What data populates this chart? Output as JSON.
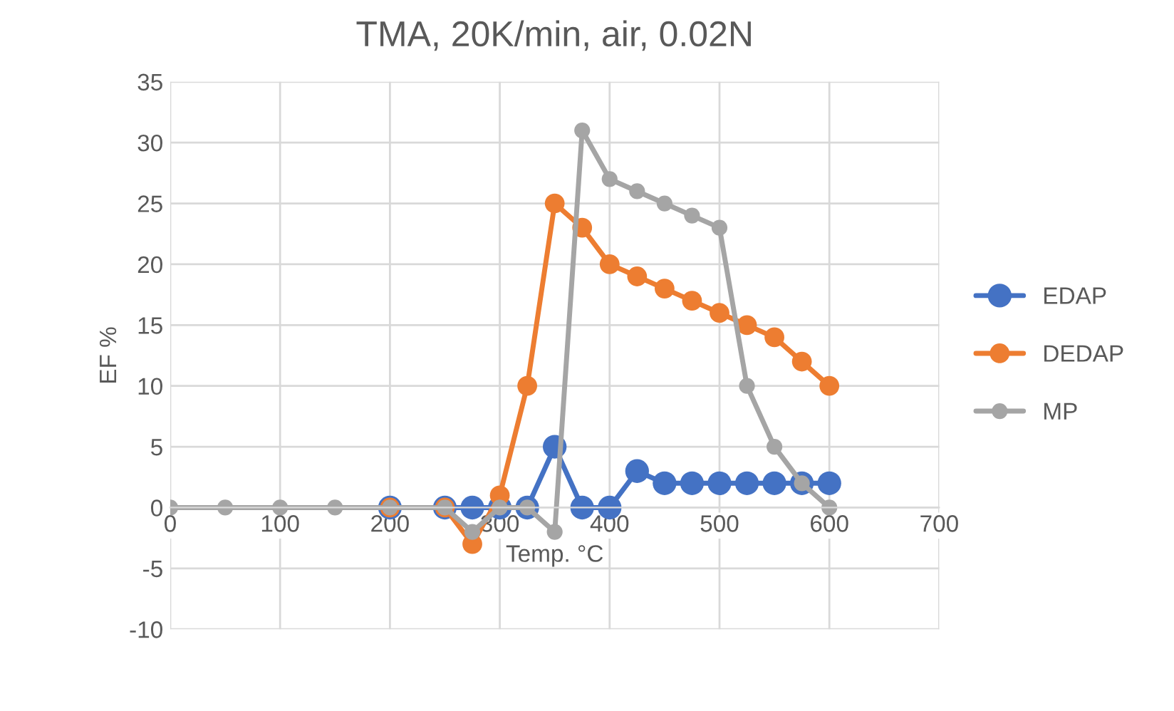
{
  "chart_data": {
    "type": "line",
    "title": "TMA, 20K/min, air, 0.02N",
    "xlabel": "Temp. °C",
    "ylabel": "EF %",
    "x": [
      0,
      50,
      100,
      150,
      200,
      250,
      275,
      300,
      325,
      350,
      375,
      400,
      425,
      450,
      475,
      500,
      525,
      550,
      575,
      600
    ],
    "series": [
      {
        "name": "EDAP",
        "color": "#4472c4",
        "values": [
          null,
          null,
          null,
          null,
          0,
          0,
          0,
          0,
          0,
          5,
          0,
          0,
          3,
          2,
          2,
          2,
          2,
          2,
          2,
          2
        ]
      },
      {
        "name": "DEDAP",
        "color": "#ed7d31",
        "values": [
          null,
          null,
          null,
          null,
          0,
          0,
          -3,
          1,
          10,
          25,
          23,
          20,
          19,
          18,
          17,
          16,
          15,
          14,
          12,
          10
        ]
      },
      {
        "name": "MP",
        "color": "#a5a5a5",
        "values": [
          0,
          0,
          0,
          0,
          0,
          0,
          -2,
          0,
          0,
          -2,
          31,
          27,
          26,
          25,
          24,
          23,
          10,
          5,
          2,
          0
        ]
      }
    ],
    "xlim": [
      0,
      700
    ],
    "xticks": [
      0,
      100,
      200,
      300,
      400,
      500,
      600,
      700
    ],
    "ylim": [
      -10,
      35
    ],
    "yticks": [
      -10,
      -5,
      0,
      5,
      10,
      15,
      20,
      25,
      30,
      35
    ],
    "grid": true,
    "legend": "right",
    "marker": "circle",
    "line_style": "solid"
  }
}
